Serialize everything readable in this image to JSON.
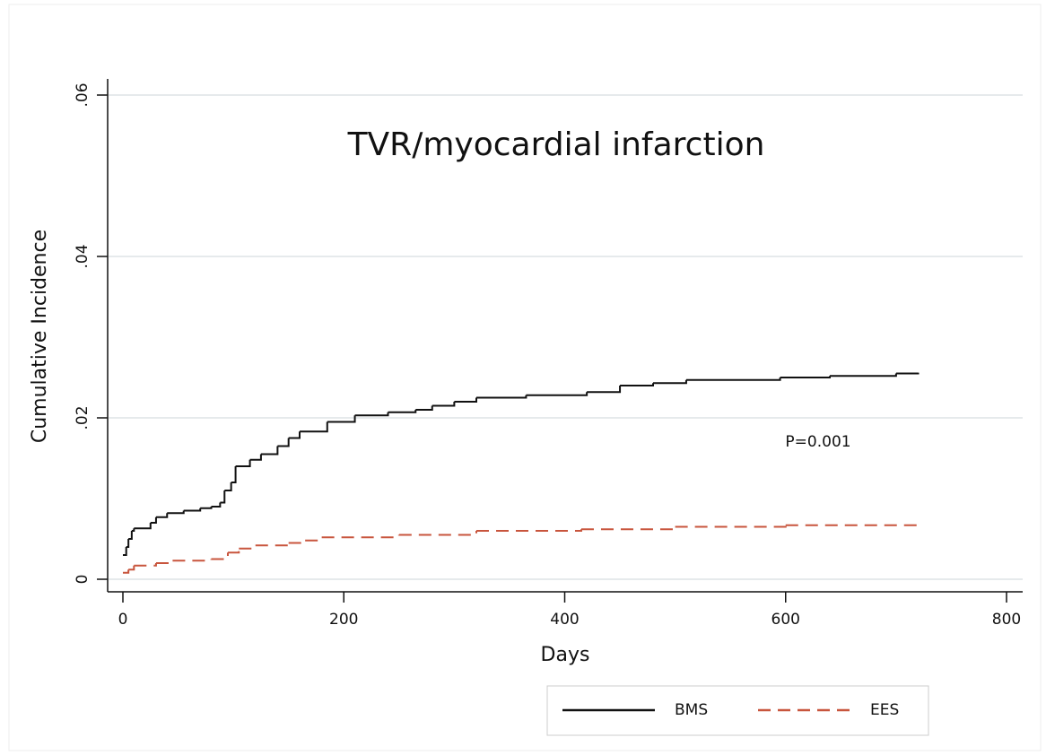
{
  "chart_data": {
    "type": "step",
    "title": "TVR/myocardial infarction",
    "x_label": "Days",
    "y_label": "Cumulative Incidence",
    "annotation": "P=0.001",
    "xlim": [
      0,
      800
    ],
    "xticks": [
      0,
      200,
      400,
      600,
      800
    ],
    "ylim": [
      0,
      0.06
    ],
    "yticks": [
      0,
      {
        "value": 0.02,
        "label": ".02"
      },
      {
        "value": 0.04,
        "label": ".04"
      },
      {
        "value": 0.06,
        "label": ".06"
      }
    ],
    "grid": true,
    "legend": "bottom",
    "series": [
      {
        "name": "BMS",
        "color": "#111111",
        "dash": "solid",
        "x": [
          0,
          3,
          5,
          8,
          10,
          25,
          30,
          40,
          55,
          70,
          80,
          88,
          92,
          98,
          102,
          115,
          125,
          140,
          150,
          160,
          185,
          210,
          240,
          265,
          280,
          300,
          320,
          365,
          420,
          450,
          480,
          510,
          595,
          640,
          700,
          720
        ],
        "values": [
          0.003,
          0.004,
          0.005,
          0.006,
          0.0063,
          0.007,
          0.0077,
          0.0082,
          0.0085,
          0.0088,
          0.009,
          0.0095,
          0.011,
          0.012,
          0.014,
          0.0148,
          0.0155,
          0.0165,
          0.0175,
          0.0183,
          0.0195,
          0.0203,
          0.0207,
          0.021,
          0.0215,
          0.022,
          0.0225,
          0.0228,
          0.0232,
          0.024,
          0.0243,
          0.0247,
          0.025,
          0.0252,
          0.0255,
          0.0256
        ]
      },
      {
        "name": "EES",
        "color": "#c8553d",
        "dash": "dashed",
        "x": [
          0,
          5,
          10,
          30,
          45,
          80,
          95,
          105,
          120,
          150,
          165,
          180,
          250,
          320,
          415,
          500,
          600,
          720
        ],
        "values": [
          0.0008,
          0.0012,
          0.0017,
          0.002,
          0.0023,
          0.0025,
          0.0033,
          0.0038,
          0.0042,
          0.0045,
          0.0048,
          0.0052,
          0.0055,
          0.006,
          0.0062,
          0.0065,
          0.0067,
          0.0068
        ]
      }
    ]
  }
}
